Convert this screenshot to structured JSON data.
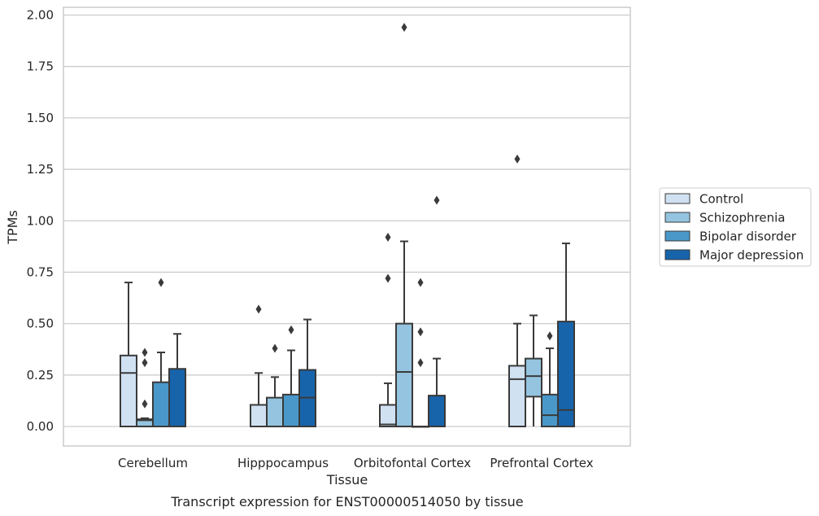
{
  "chart_data": {
    "type": "box",
    "xlabel": "Tissue",
    "ylabel": "TPMs",
    "caption": "Transcript expression for ENST00000514050 by tissue",
    "ylim": [
      -0.1,
      2.02
    ],
    "yticks": [
      "0.00",
      "0.25",
      "0.50",
      "0.75",
      "1.00",
      "1.25",
      "1.50",
      "1.75",
      "2.00"
    ],
    "grid": true,
    "legend_position": "right",
    "categories": [
      "Cerebellum",
      "Hipppocampus",
      "Orbitofontal Cortex",
      "Prefrontal Cortex"
    ],
    "series": [
      {
        "name": "Control",
        "color": "#d0e1f2",
        "boxes": [
          {
            "whisker_low": 0.0,
            "q1": 0.0,
            "median": 0.26,
            "q3": 0.345,
            "whisker_high": 0.7,
            "outliers": []
          },
          {
            "whisker_low": 0.0,
            "q1": 0.0,
            "median": 0.0,
            "q3": 0.105,
            "whisker_high": 0.26,
            "outliers": [
              0.57
            ]
          },
          {
            "whisker_low": 0.0,
            "q1": 0.0,
            "median": 0.01,
            "q3": 0.105,
            "whisker_high": 0.21,
            "outliers": [
              0.72,
              0.92
            ]
          },
          {
            "whisker_low": 0.0,
            "q1": 0.0,
            "median": 0.23,
            "q3": 0.295,
            "whisker_high": 0.5,
            "outliers": [
              1.3
            ]
          }
        ]
      },
      {
        "name": "Schizophrenia",
        "color": "#94c4df",
        "boxes": [
          {
            "whisker_low": 0.0,
            "q1": 0.0,
            "median": 0.03,
            "q3": 0.035,
            "whisker_high": 0.04,
            "outliers": [
              0.11,
              0.31,
              0.36
            ]
          },
          {
            "whisker_low": 0.0,
            "q1": 0.0,
            "median": 0.0,
            "q3": 0.14,
            "whisker_high": 0.24,
            "outliers": [
              0.38
            ]
          },
          {
            "whisker_low": 0.0,
            "q1": 0.0,
            "median": 0.265,
            "q3": 0.5,
            "whisker_high": 0.9,
            "outliers": [
              1.94
            ]
          },
          {
            "whisker_low": 0.0,
            "q1": 0.145,
            "median": 0.245,
            "q3": 0.33,
            "whisker_high": 0.54,
            "outliers": []
          }
        ]
      },
      {
        "name": "Bipolar disorder",
        "color": "#4a98c9",
        "boxes": [
          {
            "whisker_low": 0.0,
            "q1": 0.0,
            "median": 0.0,
            "q3": 0.215,
            "whisker_high": 0.36,
            "outliers": [
              0.7
            ]
          },
          {
            "whisker_low": 0.0,
            "q1": 0.0,
            "median": 0.0,
            "q3": 0.155,
            "whisker_high": 0.37,
            "outliers": [
              0.47
            ]
          },
          {
            "whisker_low": 0.0,
            "q1": 0.0,
            "median": 0.0,
            "q3": 0.0,
            "whisker_high": 0.0,
            "outliers": [
              0.31,
              0.46,
              0.7
            ]
          },
          {
            "whisker_low": 0.0,
            "q1": 0.0,
            "median": 0.055,
            "q3": 0.155,
            "whisker_high": 0.38,
            "outliers": [
              0.44
            ]
          }
        ]
      },
      {
        "name": "Major depression",
        "color": "#1764ab",
        "boxes": [
          {
            "whisker_low": 0.0,
            "q1": 0.0,
            "median": 0.0,
            "q3": 0.28,
            "whisker_high": 0.45,
            "outliers": []
          },
          {
            "whisker_low": 0.0,
            "q1": 0.0,
            "median": 0.14,
            "q3": 0.275,
            "whisker_high": 0.52,
            "outliers": []
          },
          {
            "whisker_low": 0.0,
            "q1": 0.0,
            "median": 0.0,
            "q3": 0.15,
            "whisker_high": 0.33,
            "outliers": [
              1.1
            ]
          },
          {
            "whisker_low": 0.0,
            "q1": 0.0,
            "median": 0.08,
            "q3": 0.51,
            "whisker_high": 0.89,
            "outliers": []
          }
        ]
      }
    ]
  }
}
